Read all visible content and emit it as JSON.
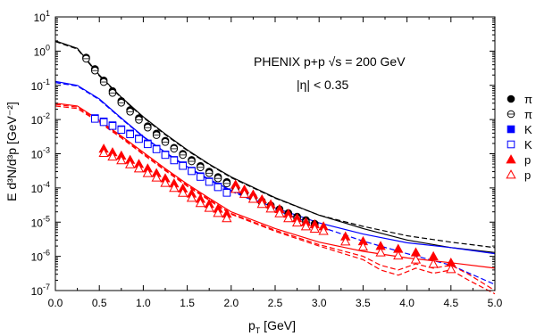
{
  "chart_data": {
    "type": "scatter",
    "title": "",
    "annotations": [
      {
        "text": "PHENIX p+p √s = 200 GeV"
      },
      {
        "text": "|η| < 0.35"
      }
    ],
    "xlabel": "p",
    "xlabel_sub": "T",
    "xlabel_suffix": " [GeV]",
    "ylabel": "E d³N/d³p [GeV⁻²]",
    "xlim": [
      0.0,
      5.0
    ],
    "ylim": [
      1e-07,
      10
    ],
    "yscale": "log",
    "x_ticks": [
      "0.0",
      "0.5",
      "1.0",
      "1.5",
      "2.0",
      "2.5",
      "3.0",
      "3.5",
      "4.0",
      "4.5",
      "5.0"
    ],
    "y_ticks": [
      {
        "mantissa": "10",
        "exp": "-7"
      },
      {
        "mantissa": "10",
        "exp": "-6"
      },
      {
        "mantissa": "10",
        "exp": "-5"
      },
      {
        "mantissa": "10",
        "exp": "-4"
      },
      {
        "mantissa": "10",
        "exp": "-3"
      },
      {
        "mantissa": "10",
        "exp": "-2"
      },
      {
        "mantissa": "10",
        "exp": "-1"
      },
      {
        "mantissa": "10",
        "exp": "0"
      },
      {
        "mantissa": "10",
        "exp": "1"
      }
    ],
    "legend_position": "right, outside plot",
    "legend": [
      {
        "label": "π",
        "marker": "circle-filled",
        "color": "#000000"
      },
      {
        "label": "π",
        "marker": "circle-open",
        "color": "#000000"
      },
      {
        "label": "K",
        "marker": "square-filled",
        "color": "#0000ff"
      },
      {
        "label": "K",
        "marker": "square-open",
        "color": "#0000ff"
      },
      {
        "label": "p",
        "marker": "triangle-filled",
        "color": "#ff0000"
      },
      {
        "label": "p",
        "marker": "triangle-open",
        "color": "#ff0000"
      }
    ],
    "series": [
      {
        "marker": "circle-filled",
        "color": "#000000",
        "x": [
          0.35,
          0.45,
          0.55,
          0.65,
          0.75,
          0.85,
          0.95,
          1.05,
          1.15,
          1.25,
          1.35,
          1.45,
          1.55,
          1.65,
          1.75,
          1.85,
          1.95,
          2.05,
          2.15,
          2.25,
          2.35,
          2.45,
          2.55,
          2.65,
          2.75,
          2.85,
          2.95
        ],
        "y": [
          0.65,
          0.3,
          0.14,
          0.068,
          0.035,
          0.019,
          0.011,
          0.0064,
          0.0039,
          0.0024,
          0.0015,
          0.001,
          0.00066,
          0.00044,
          0.0003,
          0.00021,
          0.00015,
          0.000105,
          7.5e-05,
          5.5e-05,
          4.1e-05,
          3.1e-05,
          2.4e-05,
          1.85e-05,
          1.45e-05,
          1.15e-05,
          9e-06
        ]
      },
      {
        "marker": "circle-open",
        "color": "#000000",
        "x": [
          0.35,
          0.45,
          0.55,
          0.65,
          0.75,
          0.85,
          0.95,
          1.05,
          1.15,
          1.25,
          1.35,
          1.45,
          1.55,
          1.65,
          1.75,
          1.85,
          1.95,
          2.05,
          2.15,
          2.25,
          2.35,
          2.45,
          2.55,
          2.65,
          2.75,
          2.85,
          2.95
        ],
        "y": [
          0.6,
          0.27,
          0.125,
          0.06,
          0.031,
          0.017,
          0.0098,
          0.0058,
          0.0035,
          0.0022,
          0.0014,
          0.00092,
          0.0006,
          0.0004,
          0.00027,
          0.00019,
          0.000135,
          9.5e-05,
          6.8e-05,
          5e-05,
          3.7e-05,
          2.8e-05,
          2.15e-05,
          1.65e-05,
          1.3e-05,
          1.02e-05,
          8e-06
        ]
      },
      {
        "marker": "square-filled",
        "color": "#0000ff",
        "x": [
          0.45,
          0.55,
          0.65,
          0.75,
          0.85,
          0.95,
          1.05,
          1.15,
          1.25,
          1.35,
          1.45,
          1.55,
          1.65,
          1.75,
          1.85,
          1.95
        ],
        "y": [
          0.011,
          0.0088,
          0.0068,
          0.0052,
          0.0039,
          0.0028,
          0.002,
          0.0014,
          0.00095,
          0.00066,
          0.00046,
          0.00032,
          0.00022,
          0.000155,
          0.00011,
          7.5e-05
        ]
      },
      {
        "marker": "square-open",
        "color": "#0000ff",
        "x": [
          0.45,
          0.55,
          0.65,
          0.75,
          0.85,
          0.95,
          1.05,
          1.15,
          1.25,
          1.35,
          1.45,
          1.55,
          1.65,
          1.75,
          1.85,
          1.95
        ],
        "y": [
          0.0105,
          0.0084,
          0.0065,
          0.005,
          0.0037,
          0.0027,
          0.0019,
          0.00135,
          0.00092,
          0.00064,
          0.00044,
          0.00031,
          0.00021,
          0.00015,
          0.000105,
          7.2e-05
        ]
      },
      {
        "marker": "triangle-filled",
        "color": "#ff0000",
        "x": [
          0.55,
          0.65,
          0.75,
          0.85,
          0.95,
          1.05,
          1.15,
          1.25,
          1.35,
          1.45,
          1.55,
          1.65,
          1.75,
          1.85,
          1.95,
          2.05,
          2.15,
          2.25,
          2.35,
          2.45,
          2.55,
          2.65,
          2.75,
          2.85,
          2.95,
          3.05,
          3.3,
          3.5,
          3.7,
          3.9,
          4.1,
          4.3,
          4.5
        ],
        "y": [
          0.0014,
          0.0011,
          0.00088,
          0.00066,
          0.0005,
          0.00037,
          0.00027,
          0.00019,
          0.000135,
          9.6e-05,
          6.8e-05,
          4.8e-05,
          3.4e-05,
          2.45e-05,
          1.75e-05,
          0.000125,
          8.9e-05,
          6.4e-05,
          4.6e-05,
          3.3e-05,
          2.4e-05,
          1.75e-05,
          1.3e-05,
          1e-05,
          8.6e-06,
          7.5e-06,
          3.8e-06,
          2.75e-06,
          2e-06,
          1.65e-06,
          1.3e-06,
          1e-06,
          6.5e-07
        ]
      },
      {
        "marker": "triangle-open",
        "color": "#ff0000",
        "x": [
          0.55,
          0.65,
          0.75,
          0.85,
          0.95,
          1.05,
          1.15,
          1.25,
          1.35,
          1.45,
          1.55,
          1.65,
          1.75,
          1.85,
          1.95,
          2.05,
          2.15,
          2.25,
          2.35,
          2.45,
          2.55,
          2.65,
          2.75,
          2.85,
          2.95,
          3.05,
          3.3,
          3.5,
          3.7,
          3.9,
          4.1,
          4.3,
          4.5
        ],
        "y": [
          0.00105,
          0.00082,
          0.00064,
          0.00049,
          0.00037,
          0.00027,
          0.0002,
          0.00014,
          0.0001,
          7.2e-05,
          5.1e-05,
          3.6e-05,
          2.6e-05,
          1.85e-05,
          1.3e-05,
          9.3e-05,
          6.7e-05,
          4.8e-05,
          3.4e-05,
          2.5e-05,
          1.8e-05,
          1.3e-05,
          9.7e-06,
          7.5e-06,
          6.4e-06,
          5.5e-06,
          2.7e-06,
          1.9e-06,
          1.3e-06,
          1.05e-06,
          8e-07,
          6e-07,
          4.2e-07
        ]
      }
    ],
    "curves": [
      {
        "color": "#000000",
        "dash": "solid",
        "x": [
          0.0,
          0.25,
          0.5,
          0.75,
          1.0,
          1.25,
          1.5,
          1.75,
          2.0,
          2.5,
          3.0,
          3.5,
          4.0,
          4.5,
          5.0
        ],
        "y": [
          2.0,
          1.2,
          0.2,
          0.045,
          0.012,
          0.0038,
          0.0013,
          0.0005,
          0.00021,
          5.2e-05,
          1.6e-05,
          6.5e-06,
          3e-06,
          1.8e-06,
          1.3e-06
        ]
      },
      {
        "color": "#000000",
        "dash": "dashed",
        "x": [
          0.0,
          0.25,
          0.5,
          0.75,
          1.0,
          1.25,
          1.5,
          1.75,
          2.0,
          2.5,
          3.0,
          3.5,
          4.0,
          4.5,
          5.0
        ],
        "y": [
          1.9,
          1.15,
          0.19,
          0.043,
          0.0115,
          0.0036,
          0.00125,
          0.00048,
          0.0002,
          5e-05,
          1.6e-05,
          7.5e-06,
          4e-06,
          2.6e-06,
          1.8e-06
        ]
      },
      {
        "color": "#0000ff",
        "dash": "solid",
        "x": [
          0.0,
          0.25,
          0.5,
          0.75,
          1.0,
          1.25,
          1.5,
          1.75,
          2.0,
          2.5,
          3.0,
          3.5,
          4.0,
          4.5,
          5.0
        ],
        "y": [
          0.13,
          0.1,
          0.04,
          0.011,
          0.0032,
          0.0011,
          0.00042,
          0.00018,
          8.5e-05,
          2.6e-05,
          9.5e-06,
          4.5e-06,
          2.5e-06,
          1.8e-06,
          1.2e-06
        ]
      },
      {
        "color": "#0000ff",
        "dash": "dashed",
        "x": [
          0.0,
          0.25,
          0.5,
          0.75,
          1.0,
          1.25,
          1.5,
          1.75,
          2.0,
          2.5,
          3.0,
          3.5,
          4.0,
          4.5,
          5.0
        ],
        "y": [
          0.12,
          0.095,
          0.038,
          0.0105,
          0.0031,
          0.00105,
          0.0004,
          0.00017,
          8e-05,
          2.3e-05,
          7.5e-06,
          2.8e-06,
          1.2e-06,
          5.5e-07,
          1.5e-07
        ]
      },
      {
        "color": "#ff0000",
        "dash": "solid",
        "x": [
          0.0,
          0.25,
          0.5,
          0.75,
          1.0,
          1.25,
          1.5,
          1.75,
          2.0,
          2.5,
          3.0,
          3.5,
          4.0,
          4.5,
          5.0
        ],
        "y": [
          0.03,
          0.025,
          0.0095,
          0.0033,
          0.0011,
          0.00037,
          0.00013,
          5e-05,
          2e-05,
          6.5e-06,
          2.6e-06,
          1.4e-06,
          9e-07,
          6.5e-07,
          4.5e-07
        ]
      },
      {
        "color": "#ff0000",
        "dash": "dashed",
        "x": [
          0.0,
          0.25,
          0.5,
          0.75,
          1.0,
          1.25,
          1.5,
          1.75,
          2.0,
          2.5,
          3.0,
          3.5,
          3.7,
          3.9,
          4.1,
          4.3,
          4.5,
          4.7,
          5.0
        ],
        "y": [
          0.028,
          0.023,
          0.0088,
          0.0031,
          0.001,
          0.00034,
          0.00012,
          4.6e-05,
          1.8e-05,
          5.8e-06,
          2.2e-06,
          1e-06,
          5.5e-07,
          4e-07,
          6e-07,
          4.5e-07,
          5.5e-07,
          3e-07,
          1e-07
        ]
      },
      {
        "color": "#ff0000",
        "dash": "dashed",
        "x": [
          0.0,
          0.25,
          0.5,
          0.75,
          1.0,
          1.25,
          1.5,
          1.75,
          2.0,
          2.5,
          3.0,
          3.5,
          3.7,
          3.9,
          4.1,
          4.3,
          4.5,
          4.7,
          5.0
        ],
        "y": [
          0.025,
          0.021,
          0.0082,
          0.0029,
          0.00095,
          0.00032,
          0.000112,
          4.3e-05,
          1.7e-05,
          5.4e-06,
          2e-06,
          8e-07,
          4e-07,
          2.8e-07,
          4.5e-07,
          3.2e-07,
          4e-07,
          2e-07,
          8e-08
        ]
      }
    ]
  }
}
